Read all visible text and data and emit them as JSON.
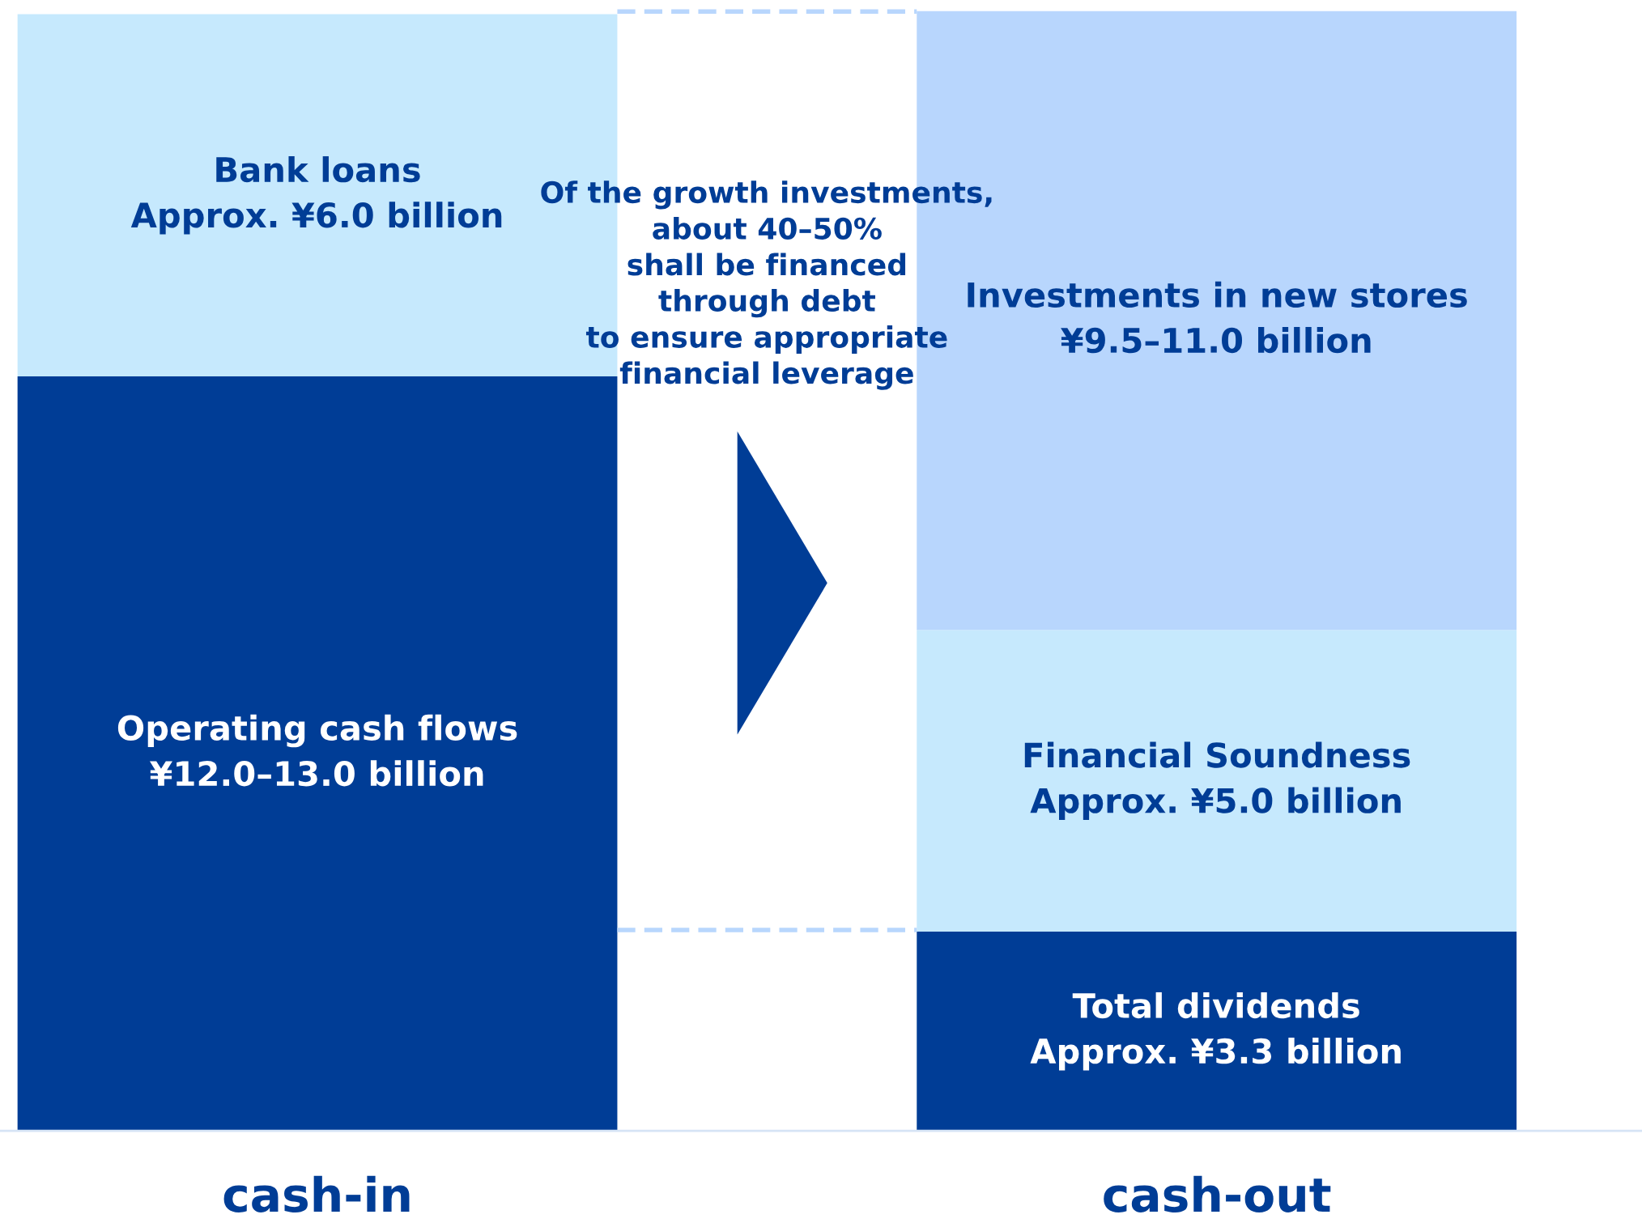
{
  "chart_data": {
    "type": "bar",
    "stacked": true,
    "ylim": [
      0,
      18.6
    ],
    "categories": [
      "cash-in",
      "cash-out"
    ],
    "series": [
      {
        "color": "#003d96",
        "values": [
          12.5,
          3.3
        ],
        "value_labels": [
          "Operating cash flows\n¥12.0–13.0 billion",
          "Total dividends\nApprox. ¥3.3 billion"
        ]
      },
      {
        "color": "#c6e9fd",
        "values": [
          6.0,
          5.0
        ],
        "value_labels": [
          "Bank loans\nApprox. ¥6.0 billion",
          "Financial Soundness\nApprox. ¥5.0 billion"
        ]
      },
      {
        "color": "#b8d6fd",
        "values": [
          null,
          10.25
        ],
        "value_labels": [
          null,
          "Investments in new stores\n¥9.5–11.0 billion"
        ]
      }
    ],
    "annotations": [
      "Of the growth investments,\nabout 40–50%\nshall be financed\nthrough debt\nto ensure appropriate\nfinancial leverage"
    ],
    "legend": false,
    "grid": false
  }
}
